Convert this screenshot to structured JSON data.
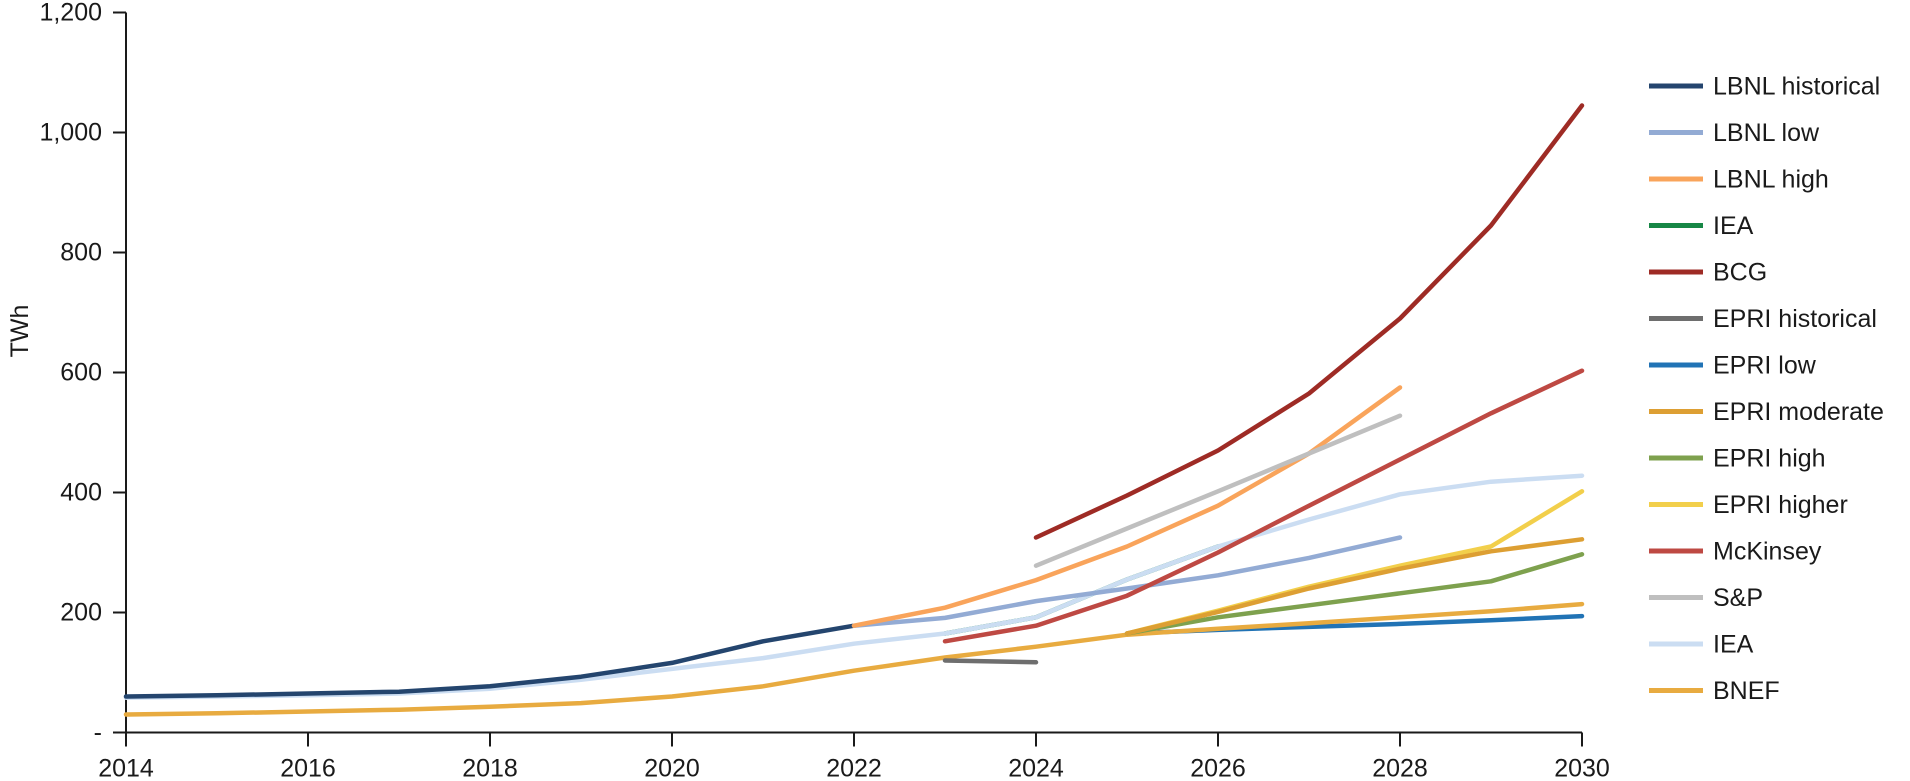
{
  "page": {
    "background_color": "#ffffff",
    "text_color": "#1a1a1a",
    "axis_color": "#1a1a1a"
  },
  "chart_data": {
    "type": "line",
    "title": "",
    "xlabel": "",
    "ylabel": "TWh",
    "xlim": [
      2014,
      2030
    ],
    "ylim": [
      0,
      1200
    ],
    "grid": false,
    "legend_position": "right",
    "x_ticks": [
      "2014",
      "2016",
      "2018",
      "2020",
      "2022",
      "2024",
      "2026",
      "2028",
      "2030"
    ],
    "y_ticks": [
      {
        "v": 0,
        "label": "-"
      },
      {
        "v": 200,
        "label": "200"
      },
      {
        "v": 400,
        "label": "400"
      },
      {
        "v": 600,
        "label": "600"
      },
      {
        "v": 800,
        "label": "800"
      },
      {
        "v": 1000,
        "label": "1,000"
      },
      {
        "v": 1200,
        "label": "1,200"
      }
    ],
    "series": [
      {
        "id": "lbnl_historical",
        "name": "LBNL historical",
        "color": "#24456E",
        "points": [
          [
            2014,
            60
          ],
          [
            2015,
            62
          ],
          [
            2016,
            65
          ],
          [
            2017,
            68
          ],
          [
            2018,
            77
          ],
          [
            2019,
            93
          ],
          [
            2020,
            116
          ],
          [
            2021,
            152
          ],
          [
            2022,
            178
          ]
        ]
      },
      {
        "id": "lbnl_low",
        "name": "LBNL low",
        "color": "#93ABD4",
        "points": [
          [
            2022,
            178
          ],
          [
            2023,
            191
          ],
          [
            2024,
            219
          ],
          [
            2025,
            240
          ],
          [
            2026,
            262
          ],
          [
            2027,
            291
          ],
          [
            2028,
            325
          ]
        ]
      },
      {
        "id": "lbnl_high",
        "name": "LBNL high",
        "color": "#F9A45B",
        "points": [
          [
            2022,
            178
          ],
          [
            2023,
            208
          ],
          [
            2024,
            254
          ],
          [
            2025,
            310
          ],
          [
            2026,
            378
          ],
          [
            2027,
            465
          ],
          [
            2028,
            575
          ]
        ]
      },
      {
        "id": "iea_green",
        "name": "IEA",
        "color": "#178746",
        "points": [
          [
            2023,
            165
          ],
          [
            2024,
            192
          ],
          [
            2025,
            255
          ],
          [
            2026,
            310
          ]
        ]
      },
      {
        "id": "bcg",
        "name": "BCG",
        "color": "#9E2B25",
        "points": [
          [
            2024,
            325
          ],
          [
            2025,
            395
          ],
          [
            2026,
            470
          ],
          [
            2027,
            565
          ],
          [
            2028,
            690
          ],
          [
            2029,
            845
          ],
          [
            2030,
            1045
          ]
        ]
      },
      {
        "id": "epri_historical",
        "name": "EPRI historical",
        "color": "#6E6E6E",
        "points": [
          [
            2023,
            120
          ],
          [
            2024,
            117
          ]
        ]
      },
      {
        "id": "epri_low",
        "name": "EPRI low",
        "color": "#2173B5",
        "points": [
          [
            2025,
            165
          ],
          [
            2026,
            171
          ],
          [
            2027,
            176
          ],
          [
            2028,
            181
          ],
          [
            2029,
            187
          ],
          [
            2030,
            194
          ]
        ]
      },
      {
        "id": "epri_moderate",
        "name": "EPRI moderate",
        "color": "#DD9F33",
        "points": [
          [
            2025,
            165
          ],
          [
            2026,
            201
          ],
          [
            2027,
            240
          ],
          [
            2028,
            273
          ],
          [
            2029,
            302
          ],
          [
            2030,
            322
          ]
        ]
      },
      {
        "id": "epri_high",
        "name": "EPRI high",
        "color": "#7EA14E",
        "points": [
          [
            2025,
            165
          ],
          [
            2026,
            192
          ],
          [
            2027,
            212
          ],
          [
            2028,
            232
          ],
          [
            2029,
            252
          ],
          [
            2030,
            297
          ]
        ]
      },
      {
        "id": "epri_higher",
        "name": "EPRI higher",
        "color": "#F2CF4B",
        "points": [
          [
            2025,
            165
          ],
          [
            2026,
            203
          ],
          [
            2027,
            243
          ],
          [
            2028,
            278
          ],
          [
            2029,
            310
          ],
          [
            2030,
            402
          ]
        ]
      },
      {
        "id": "mckinsey",
        "name": "McKinsey",
        "color": "#BE4943",
        "points": [
          [
            2023,
            152
          ],
          [
            2024,
            178
          ],
          [
            2025,
            228
          ],
          [
            2026,
            300
          ],
          [
            2027,
            378
          ],
          [
            2028,
            455
          ],
          [
            2029,
            532
          ],
          [
            2030,
            603
          ]
        ]
      },
      {
        "id": "sp",
        "name": "S&P",
        "color": "#BFBFBF",
        "points": [
          [
            2024,
            278
          ],
          [
            2025,
            340
          ],
          [
            2026,
            402
          ],
          [
            2027,
            465
          ],
          [
            2028,
            528
          ]
        ]
      },
      {
        "id": "iea_light",
        "name": "IEA",
        "color": "#CBDDF2",
        "points": [
          [
            2014,
            58
          ],
          [
            2015,
            60
          ],
          [
            2016,
            62
          ],
          [
            2017,
            65
          ],
          [
            2018,
            73
          ],
          [
            2019,
            88
          ],
          [
            2020,
            106
          ],
          [
            2021,
            124
          ],
          [
            2022,
            148
          ],
          [
            2023,
            165
          ],
          [
            2024,
            192
          ],
          [
            2025,
            255
          ],
          [
            2026,
            310
          ],
          [
            2027,
            355
          ],
          [
            2028,
            397
          ],
          [
            2029,
            418
          ],
          [
            2030,
            428
          ]
        ]
      },
      {
        "id": "bnef",
        "name": "BNEF",
        "color": "#E8AB40",
        "points": [
          [
            2014,
            30
          ],
          [
            2015,
            32
          ],
          [
            2016,
            35
          ],
          [
            2017,
            38
          ],
          [
            2018,
            43
          ],
          [
            2019,
            49
          ],
          [
            2020,
            60
          ],
          [
            2021,
            77
          ],
          [
            2022,
            103
          ],
          [
            2023,
            125
          ],
          [
            2024,
            143
          ],
          [
            2025,
            163
          ],
          [
            2026,
            173
          ],
          [
            2027,
            182
          ],
          [
            2028,
            192
          ],
          [
            2029,
            202
          ],
          [
            2030,
            214
          ]
        ]
      }
    ],
    "draw_order": [
      "iea_green",
      "iea_light",
      "epri_low",
      "bnef",
      "lbnl_historical",
      "lbnl_low",
      "lbnl_high",
      "epri_historical",
      "sp",
      "epri_higher",
      "epri_high",
      "epri_moderate",
      "mckinsey",
      "bcg"
    ]
  }
}
